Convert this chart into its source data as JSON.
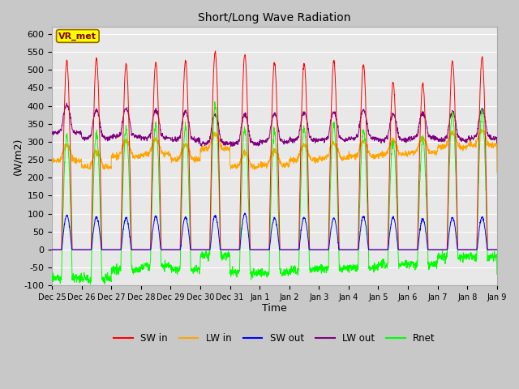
{
  "title": "Short/Long Wave Radiation",
  "xlabel": "Time",
  "ylabel": "(W/m2)",
  "ylim": [
    -100,
    620
  ],
  "yticks": [
    -100,
    -50,
    0,
    50,
    100,
    150,
    200,
    250,
    300,
    350,
    400,
    450,
    500,
    550,
    600
  ],
  "xtick_labels": [
    "Dec 25",
    "Dec 26",
    "Dec 27",
    "Dec 28",
    "Dec 29",
    "Dec 30",
    "Dec 31",
    "Jan 1",
    "Jan 2",
    "Jan 3",
    "Jan 4",
    "Jan 5",
    "Jan 6",
    "Jan 7",
    "Jan 8",
    "Jan 9"
  ],
  "n_days": 15,
  "fig_bg_color": "#c8c8c8",
  "plot_bg_color": "#e8e8e8",
  "legend_entries": [
    "SW in",
    "LW in",
    "SW out",
    "LW out",
    "Rnet"
  ],
  "legend_colors": [
    "red",
    "orange",
    "blue",
    "purple",
    "lime"
  ],
  "annotation_text": "VR_met",
  "annotation_bg": "#ffff00",
  "annotation_border": "#996600"
}
